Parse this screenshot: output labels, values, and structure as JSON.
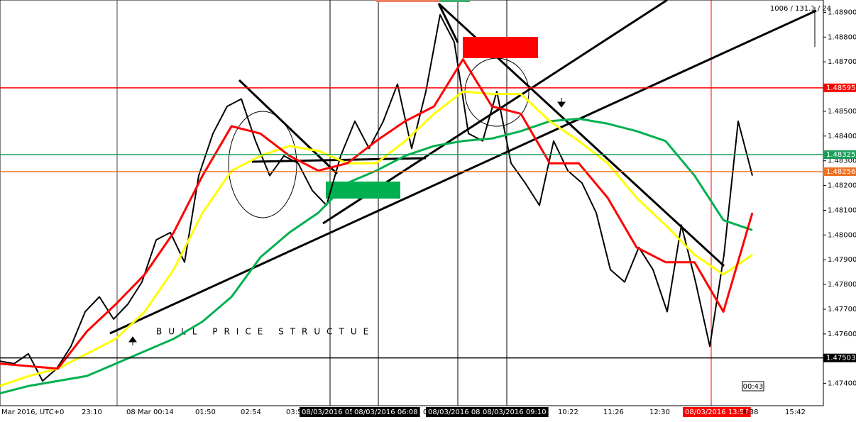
{
  "chart_data": {
    "type": "line",
    "info": "1006 / 131.1 / 24",
    "annotation": "BULL PRICE STRUCTUE",
    "timer": "00:43",
    "ylim": [
      1.4731,
      1.4895
    ],
    "yticks": [
      {
        "value": 1.474,
        "label": "1.47400"
      },
      {
        "value": 1.475,
        "label": "1.47500"
      },
      {
        "value": 1.476,
        "label": "1.47600"
      },
      {
        "value": 1.477,
        "label": "1.47700"
      },
      {
        "value": 1.478,
        "label": "1.47800"
      },
      {
        "value": 1.479,
        "label": "1.47900"
      },
      {
        "value": 1.48,
        "label": "1.48000"
      },
      {
        "value": 1.481,
        "label": "1.48100"
      },
      {
        "value": 1.482,
        "label": "1.48200"
      },
      {
        "value": 1.483,
        "label": "1.48300"
      },
      {
        "value": 1.484,
        "label": "1.48400"
      },
      {
        "value": 1.485,
        "label": "1.48500"
      },
      {
        "value": 1.486,
        "label": "1.48600"
      },
      {
        "value": 1.487,
        "label": "1.48700"
      },
      {
        "value": 1.488,
        "label": "1.48800"
      },
      {
        "value": 1.489,
        "label": "1.48900"
      }
    ],
    "levels": [
      {
        "value": 1.48595,
        "color": "#ff0000"
      },
      {
        "value": 1.48325,
        "color": "#1a9e5a"
      },
      {
        "value": 1.48256,
        "color": "#f07020"
      },
      {
        "value": 1.47503,
        "color": "#000000"
      }
    ],
    "x_labels": [
      "Mar 2016, UTC+0",
      "23:10",
      "08 Mar 00:14",
      "01:50",
      "02:54",
      "03:5",
      "08/03/2016 05",
      "08/03/2016 06:08",
      "0",
      "08/03/2016 08",
      "08/03/2016 09:10",
      "10:22",
      "11:26",
      "12:30",
      "08/03/2016 13:57",
      "4:38",
      "15:42"
    ],
    "series": [
      {
        "color": "#000000",
        "values": [
          1.4749,
          1.4748,
          1.4752,
          1.4741,
          1.4746,
          1.4755,
          1.4769,
          1.4775,
          1.4766,
          1.4772,
          1.4781,
          1.4798,
          1.4801,
          1.4789,
          1.4824,
          1.4841,
          1.4852,
          1.4855,
          1.4838,
          1.4824,
          1.4832,
          1.4829,
          1.4818,
          1.4812,
          1.4832,
          1.4846,
          1.4835,
          1.4846,
          1.4861,
          1.4835,
          1.4858,
          1.4889,
          1.4878,
          1.4841,
          1.4838,
          1.4858,
          1.4829,
          1.4821,
          1.4812,
          1.4838,
          1.4826,
          1.4821,
          1.4809,
          1.4786,
          1.4781,
          1.4795,
          1.4786,
          1.4769,
          1.4804,
          1.4781,
          1.4755,
          1.4792,
          1.4846,
          1.4824
        ]
      },
      {
        "color": "#00b050",
        "values": [
          1.4736,
          1.4739,
          1.4741,
          1.4743,
          1.4748,
          1.4753,
          1.4758,
          1.4765,
          1.4775,
          1.4791,
          1.4801,
          1.4809,
          1.4821,
          1.4826,
          1.4832,
          1.4836,
          1.4838,
          1.4839,
          1.4842,
          1.4846,
          1.4847,
          1.4845,
          1.4842,
          1.4838,
          1.4824,
          1.4806,
          1.4802
        ]
      },
      {
        "color": "#ffff00",
        "values": [
          1.4739,
          1.4743,
          1.4746,
          1.4752,
          1.4758,
          1.4769,
          1.4786,
          1.4809,
          1.4826,
          1.4832,
          1.4836,
          1.4834,
          1.4829,
          1.4829,
          1.4838,
          1.4849,
          1.4858,
          1.4857,
          1.4857,
          1.4846,
          1.4838,
          1.4829,
          1.4815,
          1.4804,
          1.4792,
          1.4784,
          1.4792
        ]
      },
      {
        "color": "#ff0000",
        "values": [
          1.4748,
          1.4747,
          1.4746,
          1.4761,
          1.4772,
          1.4784,
          1.4801,
          1.4824,
          1.4844,
          1.4841,
          1.4832,
          1.4826,
          1.4829,
          1.4838,
          1.4846,
          1.4852,
          1.4871,
          1.4852,
          1.4849,
          1.4829,
          1.4829,
          1.4815,
          1.4795,
          1.4789,
          1.4789,
          1.4769,
          1.4809
        ]
      }
    ]
  }
}
